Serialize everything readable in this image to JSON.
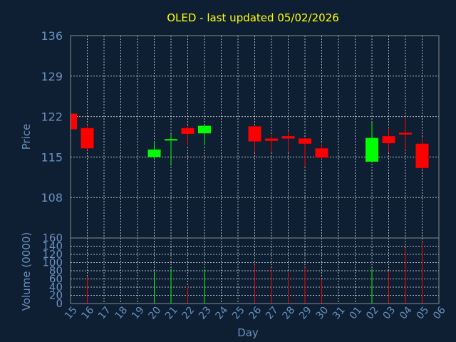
{
  "chart_data": {
    "type": "candlestick",
    "title": "OLED - last updated 05/02/2026",
    "xlabel": "Day",
    "ylabel": "Price",
    "volume_label": "Volume (0000)",
    "price_ticks": [
      108,
      115,
      122,
      129,
      136
    ],
    "volume_ticks": [
      0,
      20,
      40,
      60,
      80,
      100,
      120,
      140,
      160
    ],
    "x_tick_labels": [
      "15",
      "16",
      "17",
      "18",
      "19",
      "20",
      "21",
      "22",
      "23",
      "24",
      "25",
      "26",
      "27",
      "28",
      "29",
      "30",
      "31",
      "01",
      "02",
      "03",
      "04",
      "05",
      "06"
    ],
    "grid": true,
    "colors": {
      "up": "#00ff00",
      "down": "#ff0000",
      "title": "#ffff00",
      "axis": "#6a8fbf",
      "background": "#0f1f33"
    },
    "candles": [
      {
        "day": "15",
        "open": 122.5,
        "high": 122.5,
        "low": 119.8,
        "close": 119.8,
        "volume": 0
      },
      {
        "day": "16",
        "open": 120.0,
        "high": 120.6,
        "low": 116.2,
        "close": 116.5,
        "volume": 65
      },
      {
        "day": "20",
        "open": 115.0,
        "high": 117.7,
        "low": 114.7,
        "close": 116.3,
        "volume": 78
      },
      {
        "day": "21",
        "open": 117.9,
        "high": 119.0,
        "low": 113.5,
        "close": 118.1,
        "volume": 85
      },
      {
        "day": "22",
        "open": 120.0,
        "high": 120.5,
        "low": 117.0,
        "close": 119.0,
        "volume": 42
      },
      {
        "day": "23",
        "open": 119.1,
        "high": 120.5,
        "low": 117.0,
        "close": 120.4,
        "volume": 83
      },
      {
        "day": "26",
        "open": 120.3,
        "high": 120.3,
        "low": 115.8,
        "close": 117.7,
        "volume": 95
      },
      {
        "day": "27",
        "open": 118.2,
        "high": 118.8,
        "low": 115.8,
        "close": 117.8,
        "volume": 85
      },
      {
        "day": "28",
        "open": 118.6,
        "high": 119.5,
        "low": 115.8,
        "close": 118.2,
        "volume": 78
      },
      {
        "day": "29",
        "open": 118.2,
        "high": 118.2,
        "low": 113.3,
        "close": 117.3,
        "volume": 88
      },
      {
        "day": "30",
        "open": 116.5,
        "high": 117.3,
        "low": 114.7,
        "close": 114.9,
        "volume": 60
      },
      {
        "day": "02",
        "open": 114.2,
        "high": 121.0,
        "low": 114.2,
        "close": 118.3,
        "volume": 85
      },
      {
        "day": "03",
        "open": 118.6,
        "high": 120.1,
        "low": 115.8,
        "close": 117.4,
        "volume": 80
      },
      {
        "day": "04",
        "open": 119.2,
        "high": 121.8,
        "low": 116.2,
        "close": 118.9,
        "volume": 135
      },
      {
        "day": "05",
        "open": 117.3,
        "high": 118.5,
        "low": 112.8,
        "close": 113.1,
        "volume": 150
      }
    ]
  }
}
